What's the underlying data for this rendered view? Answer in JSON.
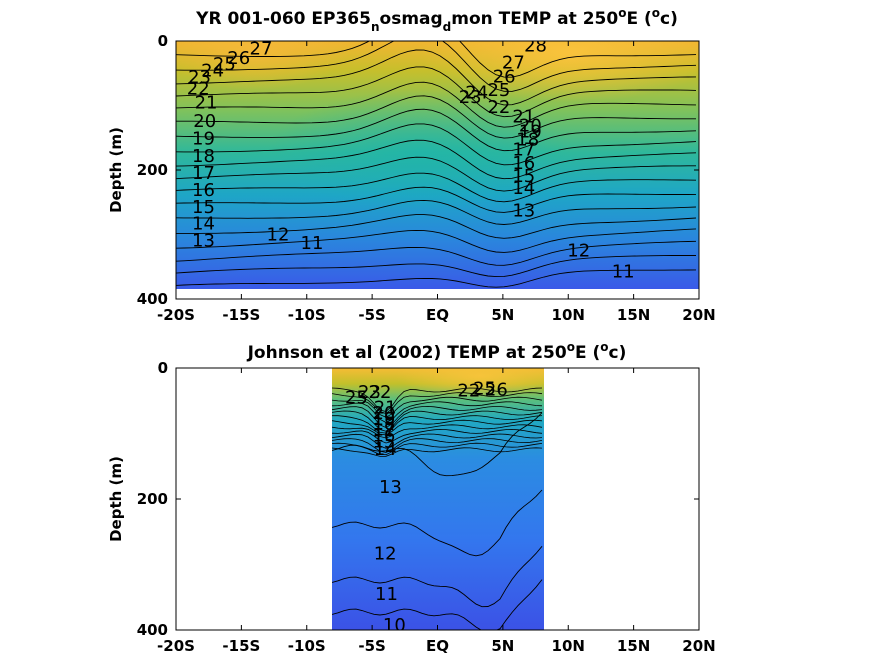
{
  "chart_data": [
    {
      "type": "heatmap",
      "title": "YR 001-060 EP365",
      "title_parts": [
        "YR 001-060 EP365",
        "n",
        "osmag",
        "d",
        "mon TEMP at 250",
        "o",
        "E (",
        "o",
        "c)"
      ],
      "xlabel": "",
      "ylabel": "Depth (m)",
      "xlim": [
        -20,
        20
      ],
      "ylim": [
        400,
        0
      ],
      "data_xlim": [
        -20,
        20
      ],
      "data_ylim": [
        0,
        385
      ],
      "x_ticks": [
        -20,
        -15,
        -10,
        -5,
        0,
        5,
        10,
        15,
        20
      ],
      "x_tick_labels": [
        "-20S",
        "-15S",
        "-10S",
        "-5S",
        "EQ",
        "5N",
        "10N",
        "15N",
        "20N"
      ],
      "y_ticks": [
        0,
        200,
        400
      ],
      "y_tick_labels": [
        "0",
        "200",
        "400"
      ],
      "colormap": "parula",
      "color_range": [
        10,
        29
      ],
      "contour_levels": [
        11,
        12,
        13,
        14,
        15,
        16,
        17,
        18,
        19,
        20,
        21,
        22,
        23,
        24,
        25,
        26,
        27,
        28
      ],
      "contour_labels": [
        {
          "text": "27",
          "x": -13.5,
          "y": 12
        },
        {
          "text": "26",
          "x": -15.2,
          "y": 26
        },
        {
          "text": "25",
          "x": -16.3,
          "y": 36
        },
        {
          "text": "24",
          "x": -17.2,
          "y": 46
        },
        {
          "text": "23",
          "x": -18.2,
          "y": 56
        },
        {
          "text": "22",
          "x": -18.3,
          "y": 74
        },
        {
          "text": "21",
          "x": -17.7,
          "y": 95
        },
        {
          "text": "20",
          "x": -17.8,
          "y": 124
        },
        {
          "text": "19",
          "x": -17.9,
          "y": 151
        },
        {
          "text": "18",
          "x": -17.9,
          "y": 178
        },
        {
          "text": "17",
          "x": -17.9,
          "y": 205
        },
        {
          "text": "16",
          "x": -17.9,
          "y": 231
        },
        {
          "text": "15",
          "x": -17.9,
          "y": 257
        },
        {
          "text": "14",
          "x": -17.9,
          "y": 283
        },
        {
          "text": "13",
          "x": -17.9,
          "y": 309
        },
        {
          "text": "12",
          "x": -12.2,
          "y": 300
        },
        {
          "text": "11",
          "x": -9.6,
          "y": 313
        },
        {
          "text": "28",
          "x": 7.5,
          "y": 7
        },
        {
          "text": "27",
          "x": 5.8,
          "y": 33
        },
        {
          "text": "26",
          "x": 5.1,
          "y": 55
        },
        {
          "text": "25",
          "x": 4.7,
          "y": 76
        },
        {
          "text": "24",
          "x": 3.0,
          "y": 80
        },
        {
          "text": "23",
          "x": 2.5,
          "y": 87
        },
        {
          "text": "22",
          "x": 4.7,
          "y": 102
        },
        {
          "text": "21",
          "x": 6.6,
          "y": 117
        },
        {
          "text": "20",
          "x": 7.1,
          "y": 131
        },
        {
          "text": "19",
          "x": 7.1,
          "y": 140
        },
        {
          "text": "18",
          "x": 6.9,
          "y": 153
        },
        {
          "text": "17",
          "x": 6.6,
          "y": 168
        },
        {
          "text": "16",
          "x": 6.6,
          "y": 189
        },
        {
          "text": "15",
          "x": 6.6,
          "y": 209
        },
        {
          "text": "14",
          "x": 6.6,
          "y": 228
        },
        {
          "text": "13",
          "x": 6.6,
          "y": 263
        },
        {
          "text": "12",
          "x": 10.8,
          "y": 325
        },
        {
          "text": "11",
          "x": 14.2,
          "y": 357
        }
      ]
    },
    {
      "type": "heatmap",
      "title": "Johnson et al (2002)",
      "title_parts": [
        "Johnson et al (2002) TEMP at 250",
        "o",
        "E (",
        "o",
        "c)"
      ],
      "xlabel": "",
      "ylabel": "Depth (m)",
      "xlim": [
        -20,
        20
      ],
      "ylim": [
        400,
        0
      ],
      "data_xlim": [
        -8,
        8.3
      ],
      "data_ylim": [
        0,
        400
      ],
      "x_ticks": [
        -20,
        -15,
        -10,
        -5,
        0,
        5,
        10,
        15,
        20
      ],
      "x_tick_labels": [
        "-20S",
        "-15S",
        "-10S",
        "-5S",
        "EQ",
        "5N",
        "10N",
        "15N",
        "20N"
      ],
      "y_ticks": [
        0,
        200,
        400
      ],
      "y_tick_labels": [
        "0",
        "200",
        "400"
      ],
      "colormap": "parula",
      "color_range": [
        10,
        29
      ],
      "contour_labels": [
        {
          "text": "25",
          "x": -6.2,
          "y": 45
        },
        {
          "text": "23",
          "x": -5.2,
          "y": 37
        },
        {
          "text": "22",
          "x": -4.4,
          "y": 37
        },
        {
          "text": "21",
          "x": -4.0,
          "y": 60
        },
        {
          "text": "20",
          "x": -4.1,
          "y": 69
        },
        {
          "text": "19",
          "x": -4.1,
          "y": 78
        },
        {
          "text": "18",
          "x": -4.1,
          "y": 85
        },
        {
          "text": "17",
          "x": -4.1,
          "y": 94
        },
        {
          "text": "16",
          "x": -4.1,
          "y": 103
        },
        {
          "text": "15",
          "x": -4.1,
          "y": 112
        },
        {
          "text": "14",
          "x": -4.0,
          "y": 124
        },
        {
          "text": "13",
          "x": -3.6,
          "y": 182
        },
        {
          "text": "12",
          "x": -4.0,
          "y": 283
        },
        {
          "text": "11",
          "x": -3.9,
          "y": 345
        },
        {
          "text": "10",
          "x": -3.3,
          "y": 392
        },
        {
          "text": "22",
          "x": 2.4,
          "y": 34
        },
        {
          "text": "25",
          "x": 3.6,
          "y": 31
        },
        {
          "text": "26",
          "x": 4.5,
          "y": 33
        }
      ]
    }
  ]
}
